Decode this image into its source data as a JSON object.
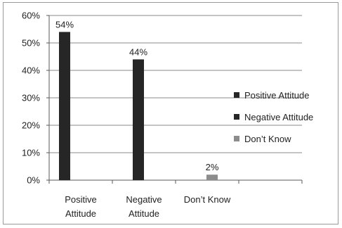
{
  "chart_data": {
    "type": "bar",
    "categories": [
      "Positive Attitude",
      "Negative Attitude",
      "Don’t Know"
    ],
    "category_lines": [
      [
        "Positive",
        "Attitude"
      ],
      [
        "Negative",
        "Attitude"
      ],
      [
        "Don’t Know"
      ]
    ],
    "values": [
      54,
      44,
      2
    ],
    "data_labels": [
      "54%",
      "44%",
      "2%"
    ],
    "colors": [
      "#262626",
      "#262626",
      "#8c8c8c"
    ],
    "ylim": [
      0,
      60
    ],
    "yticks": [
      0,
      10,
      20,
      30,
      40,
      50,
      60
    ],
    "ytick_labels": [
      "0%",
      "10%",
      "20%",
      "30%",
      "40%",
      "50%",
      "60%"
    ],
    "grid": true,
    "legend": {
      "placement": "right",
      "entries": [
        {
          "label": "Positive Attitude",
          "color": "#262626"
        },
        {
          "label": "Negative Attitude",
          "color": "#262626"
        },
        {
          "label": "Don’t Know",
          "color": "#8c8c8c"
        }
      ]
    },
    "title": "",
    "xlabel": "",
    "ylabel": ""
  }
}
